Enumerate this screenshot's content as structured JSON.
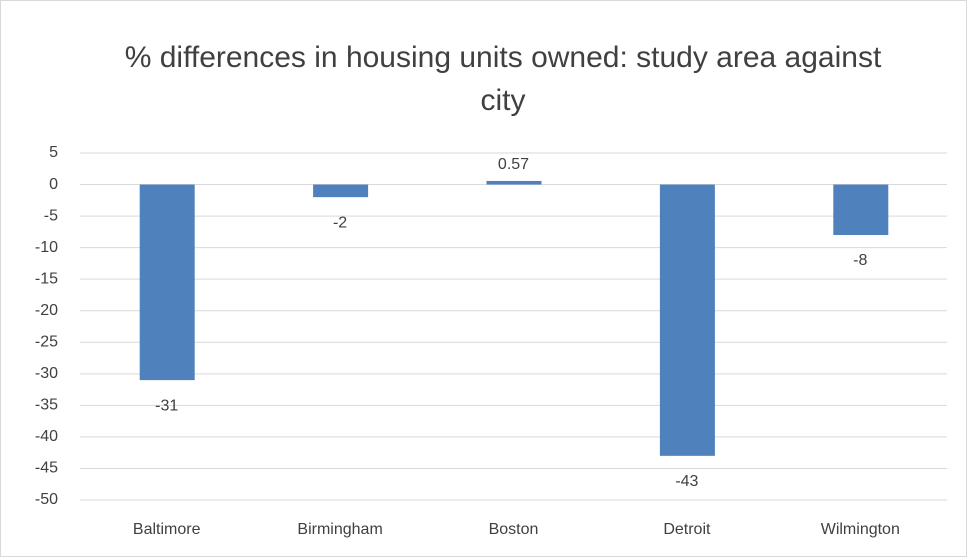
{
  "chart_data": {
    "type": "bar",
    "title": "% differences in housing units owned: study area against city",
    "categories": [
      "Baltimore",
      "Birmingham",
      "Boston",
      "Detroit",
      "Wilmington"
    ],
    "values": [
      -31,
      -2,
      0.57,
      -43,
      -8
    ],
    "color": "#4f81bd",
    "ylim": [
      -50,
      5
    ],
    "yticks": [
      5,
      0,
      -5,
      -10,
      -15,
      -20,
      -25,
      -30,
      -35,
      -40,
      -45,
      -50
    ],
    "grid": true
  }
}
